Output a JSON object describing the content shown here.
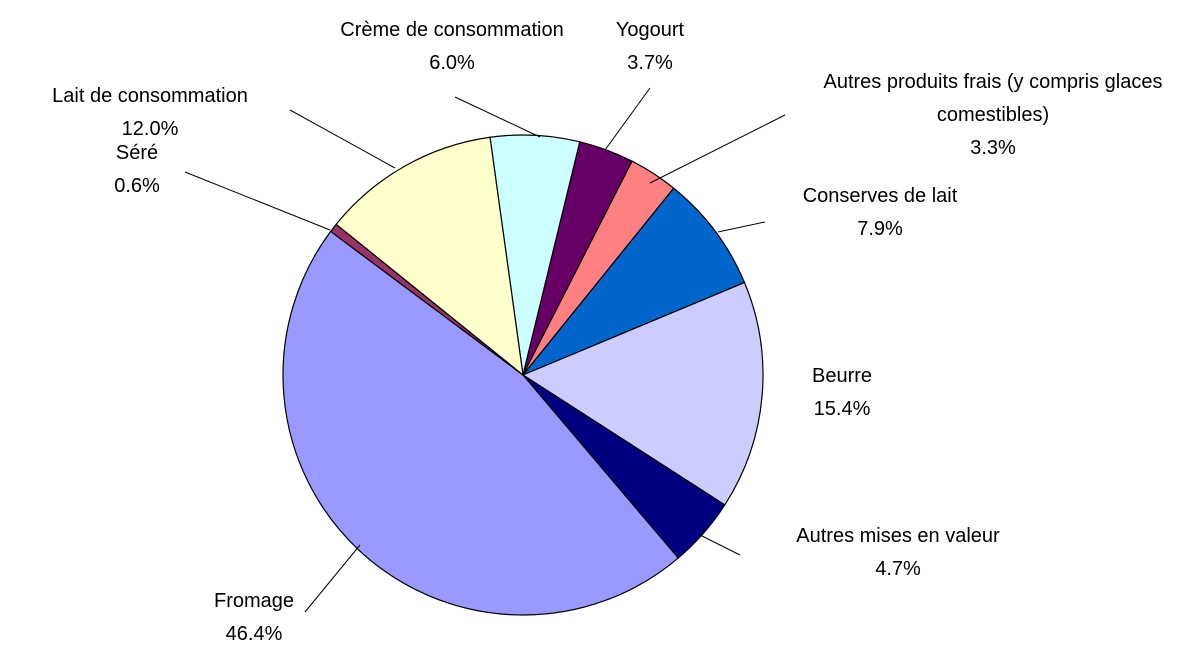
{
  "chart_data": {
    "type": "pie",
    "categories": [
      "Crème de consommation",
      "Yogourt",
      "Autres produits frais (y compris glaces comestibles)",
      "Conserves de lait",
      "Beurre",
      "Autres mises en valeur",
      "Fromage",
      "Séré",
      "Lait de consommation"
    ],
    "values": [
      6.0,
      3.7,
      3.3,
      7.9,
      15.4,
      4.7,
      46.4,
      0.6,
      12.0
    ],
    "value_labels": [
      "6.0%",
      "3.7%",
      "3.3%",
      "7.9%",
      "15.4%",
      "4.7%",
      "46.4%",
      "0.6%",
      "12.0%"
    ],
    "colors": [
      "#ccffff",
      "#660066",
      "#ff8080",
      "#0066cc",
      "#ccccff",
      "#000080",
      "#9999ff",
      "#993366",
      "#ffffcc"
    ]
  }
}
